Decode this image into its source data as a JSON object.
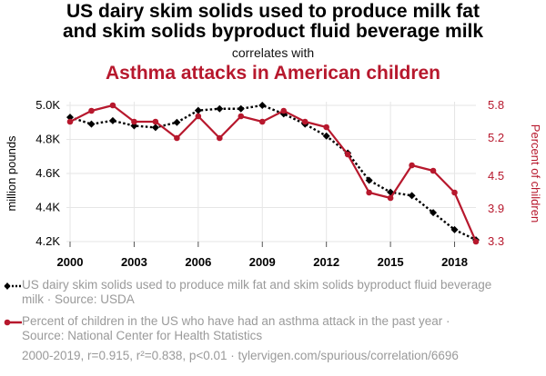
{
  "title_lines": [
    "US dairy skim solids used to produce milk fat",
    "and skim solids byproduct fluid beverage milk"
  ],
  "subtitle": "correlates with",
  "title2": "Asthma attacks in American children",
  "colors": {
    "series1": "#000000",
    "series2": "#b7182d",
    "grid": "#e6e6e6",
    "muted": "#9a9a9a"
  },
  "chart_data": {
    "type": "line",
    "x": [
      2000,
      2001,
      2002,
      2003,
      2004,
      2005,
      2006,
      2007,
      2008,
      2009,
      2010,
      2011,
      2012,
      2013,
      2014,
      2015,
      2016,
      2017,
      2018,
      2019
    ],
    "x_ticks": [
      2000,
      2003,
      2006,
      2009,
      2012,
      2015,
      2018
    ],
    "x_tick_labels": [
      "2000",
      "2003",
      "2006",
      "2009",
      "2012",
      "2015",
      "2018"
    ],
    "y_left": {
      "label": "million pounds",
      "ylim": [
        4.2,
        5.0
      ],
      "ticks": [
        4.2,
        4.4,
        4.6,
        4.8,
        5.0
      ],
      "tick_labels": [
        "4.2K",
        "4.4K",
        "4.6K",
        "4.8K",
        "5.0K"
      ]
    },
    "y_right": {
      "label": "Percent of children",
      "ylim": [
        3.3,
        5.8
      ],
      "ticks": [
        3.3,
        3.9,
        4.5,
        5.2,
        5.8
      ],
      "tick_labels": [
        "3.3",
        "3.9",
        "4.5",
        "5.2",
        "5.8"
      ]
    },
    "grid": true,
    "series": [
      {
        "name": "US dairy skim solids used to produce milk fat and skim solids byproduct fluid beverage milk",
        "axis": "left",
        "style": "dotted",
        "marker": "diamond",
        "values": [
          4.93,
          4.89,
          4.91,
          4.88,
          4.87,
          4.9,
          4.97,
          4.98,
          4.98,
          5.0,
          4.95,
          4.89,
          4.82,
          4.72,
          4.56,
          4.49,
          4.47,
          4.37,
          4.27,
          4.21
        ]
      },
      {
        "name": "Percent of children in the US who have had an asthma attack in the past year",
        "axis": "right",
        "style": "solid",
        "marker": "circle",
        "values": [
          5.5,
          5.7,
          5.8,
          5.5,
          5.5,
          5.2,
          5.6,
          5.2,
          5.6,
          5.5,
          5.7,
          5.5,
          5.4,
          4.9,
          4.2,
          4.1,
          4.7,
          4.6,
          4.2,
          3.3
        ]
      }
    ]
  },
  "legend": [
    {
      "text": "US dairy skim solids used to produce milk fat and skim solids byproduct fluid beverage milk · Source: USDA"
    },
    {
      "text": "Percent of children in the US who have had an asthma attack in the past year · Source: National Center for Health Statistics"
    }
  ],
  "footer": "2000-2019, r=0.915, r²=0.838, p<0.01 · tylervigen.com/spurious/correlation/6696"
}
